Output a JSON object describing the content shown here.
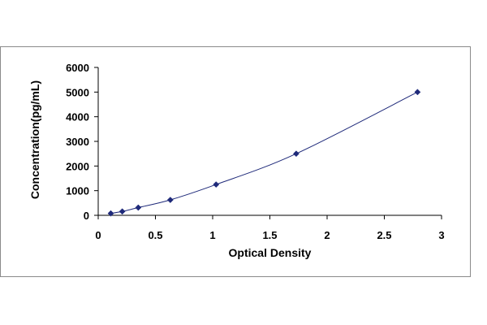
{
  "chart_data": {
    "type": "scatter",
    "title": "",
    "xlabel": "Optical Density",
    "ylabel": "Concentration(pg/mL)",
    "xlim": [
      0,
      3
    ],
    "ylim": [
      0,
      6000
    ],
    "xticks": [
      0,
      0.5,
      1,
      1.5,
      2,
      2.5,
      3
    ],
    "yticks": [
      0,
      1000,
      2000,
      3000,
      4000,
      5000,
      6000
    ],
    "xtick_labels": [
      "0",
      "0.5",
      "1",
      "1.5",
      "2",
      "2.5",
      "3"
    ],
    "ytick_labels": [
      "0",
      "1000",
      "2000",
      "3000",
      "4000",
      "5000",
      "6000"
    ],
    "grid": false,
    "legend": "none",
    "fit_line": true,
    "series": [
      {
        "x": [
          0.11,
          0.21,
          0.35,
          0.63,
          1.03,
          1.73,
          2.79
        ],
        "y": [
          78,
          156,
          313,
          625,
          1250,
          2500,
          5000
        ],
        "marker": "diamond",
        "color": "#1f2a7a"
      }
    ]
  }
}
